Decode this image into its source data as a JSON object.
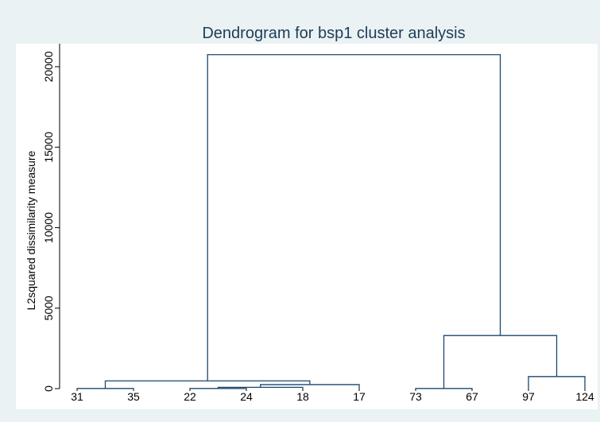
{
  "chart_data": {
    "type": "dendrogram",
    "title": "Dendrogram for bsp1 cluster analysis",
    "y_label": "L2squared dissimilarity measure",
    "ylim": [
      0,
      21400
    ],
    "yticks": [
      0,
      5000,
      10000,
      15000,
      20000
    ],
    "color": "#1a476f",
    "tree": {
      "height": 20750,
      "children": [
        {
          "height": 480,
          "children": [
            {
              "height": 10,
              "children": [
                "31",
                "35"
              ]
            },
            {
              "height": 250,
              "children": [
                {
                  "height": 80,
                  "children": [
                    {
                      "height": 10,
                      "children": [
                        "22",
                        "24"
                      ]
                    },
                    "18"
                  ]
                },
                "17"
              ]
            }
          ]
        },
        {
          "height": 3300,
          "children": [
            {
              "height": 10,
              "children": [
                "73",
                "67"
              ]
            },
            {
              "height": 750,
              "children": [
                "97",
                "124"
              ]
            }
          ]
        }
      ]
    }
  }
}
